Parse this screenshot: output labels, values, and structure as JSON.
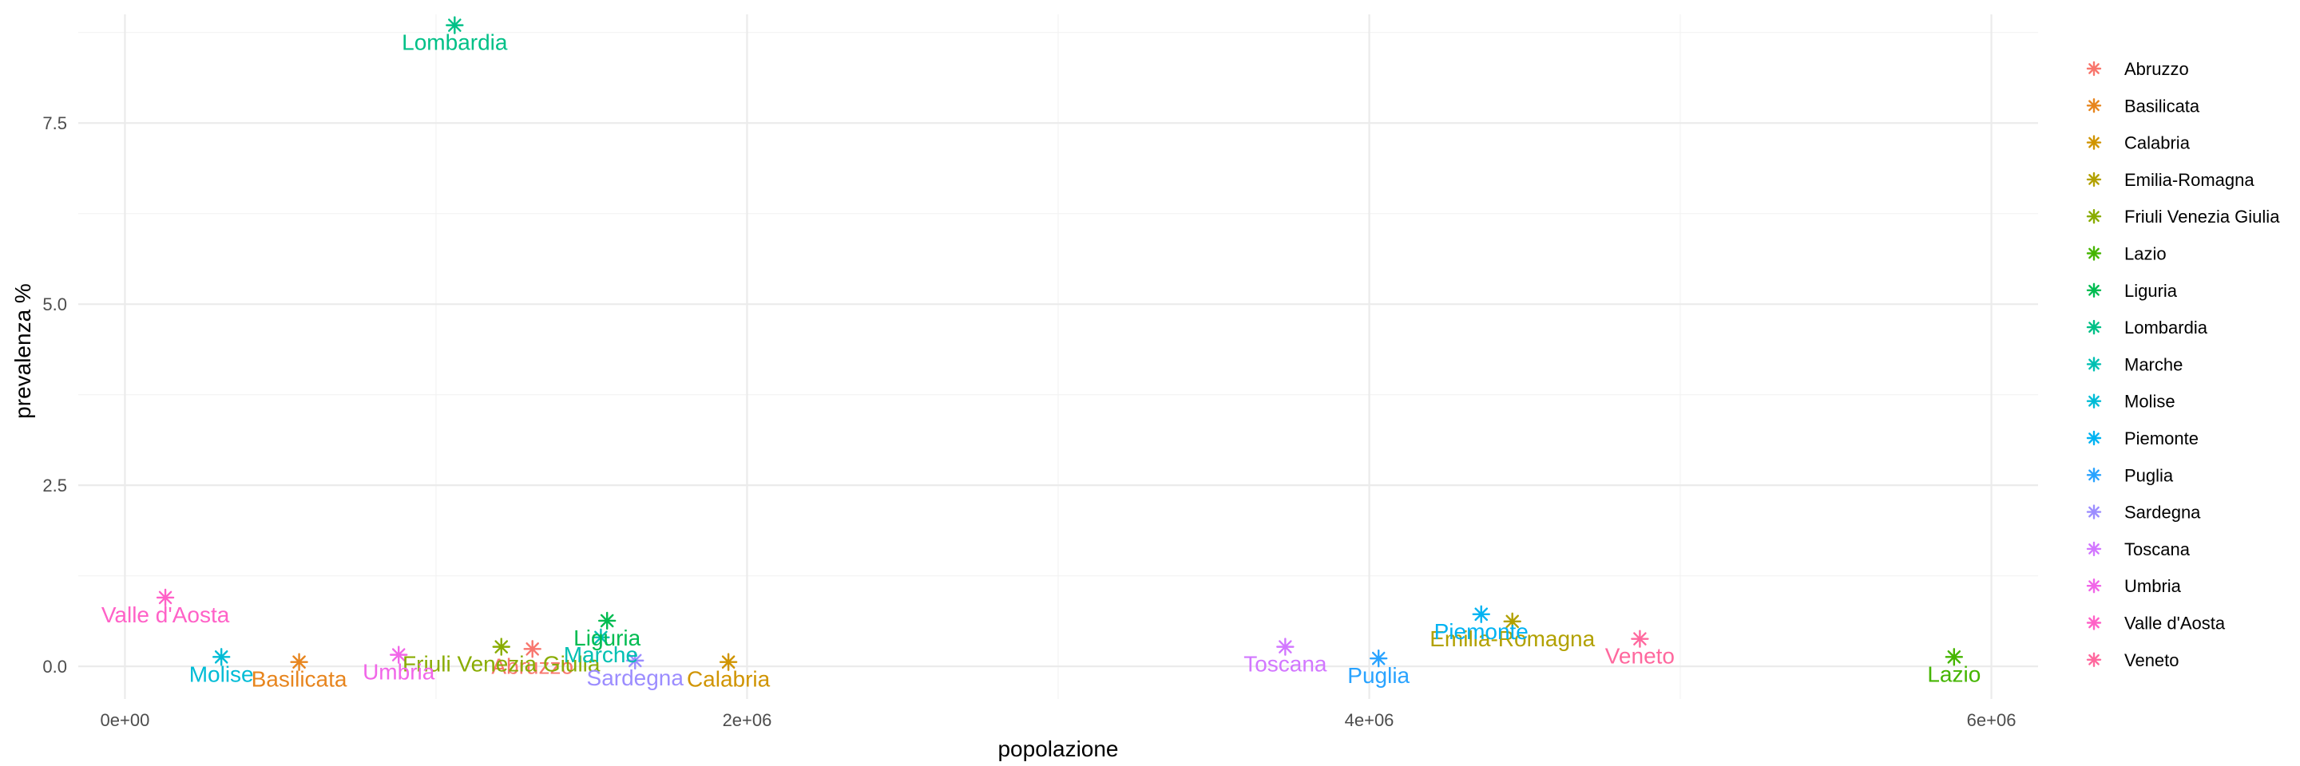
{
  "chart_data": {
    "type": "scatter",
    "xlabel": "popolazione",
    "ylabel": "prevalenza %",
    "xlim": [
      -150000,
      6150000
    ],
    "ylim": [
      -0.45,
      9.0
    ],
    "x_ticks": [
      0,
      2000000,
      4000000,
      6000000
    ],
    "x_tick_labels": [
      "0e+00",
      "2e+06",
      "4e+06",
      "6e+06"
    ],
    "y_ticks": [
      0.0,
      2.5,
      5.0,
      7.5
    ],
    "y_tick_labels": [
      "0.0",
      "2.5",
      "5.0",
      "7.5"
    ],
    "grid": true,
    "legend_position": "right",
    "marker": "asterisk",
    "series": [
      {
        "name": "Abruzzo",
        "color": "#F8766D",
        "x": 1310000,
        "y": 0.24
      },
      {
        "name": "Basilicata",
        "color": "#E7851E",
        "x": 560000,
        "y": 0.06
      },
      {
        "name": "Calabria",
        "color": "#D09400",
        "x": 1940000,
        "y": 0.06
      },
      {
        "name": "Emilia-Romagna",
        "color": "#B2A100",
        "x": 4460000,
        "y": 0.62
      },
      {
        "name": "Friuli Venezia Giulia",
        "color": "#89AC00",
        "x": 1210000,
        "y": 0.27
      },
      {
        "name": "Lazio",
        "color": "#45B500",
        "x": 5880000,
        "y": 0.13
      },
      {
        "name": "Liguria",
        "color": "#00BC51",
        "x": 1550000,
        "y": 0.63
      },
      {
        "name": "Lombardia",
        "color": "#00C087",
        "x": 1060000,
        "y": 8.85
      },
      {
        "name": "Marche",
        "color": "#00C0B2",
        "x": 1530000,
        "y": 0.4
      },
      {
        "name": "Molise",
        "color": "#00BCD6",
        "x": 310000,
        "y": 0.13
      },
      {
        "name": "Piemonte",
        "color": "#00B3F2",
        "x": 4360000,
        "y": 0.72
      },
      {
        "name": "Puglia",
        "color": "#29A3FF",
        "x": 4030000,
        "y": 0.11
      },
      {
        "name": "Sardegna",
        "color": "#9C8DFF",
        "x": 1640000,
        "y": 0.08
      },
      {
        "name": "Toscana",
        "color": "#D277FF",
        "x": 3730000,
        "y": 0.27
      },
      {
        "name": "Umbria",
        "color": "#F166E8",
        "x": 880000,
        "y": 0.16
      },
      {
        "name": "Valle d'Aosta",
        "color": "#FF61C7",
        "x": 130000,
        "y": 0.95
      },
      {
        "name": "Veneto",
        "color": "#FF689E",
        "x": 4870000,
        "y": 0.38
      }
    ]
  }
}
